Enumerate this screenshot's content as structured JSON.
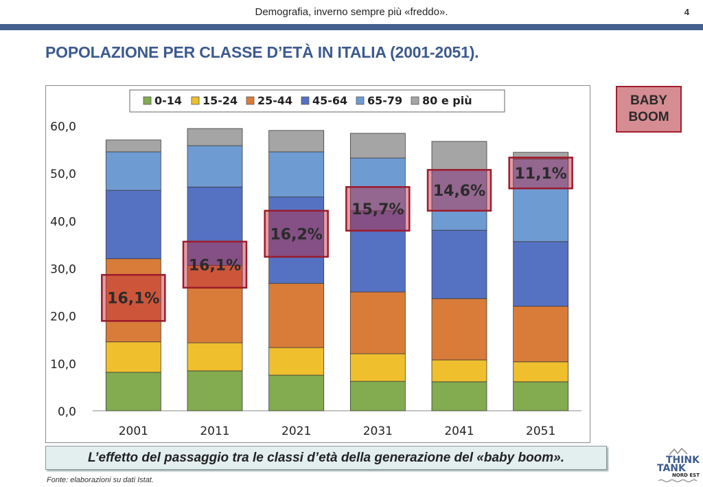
{
  "header": {
    "text": "Demografia, inverno sempre più «freddo».",
    "page_number": "4"
  },
  "title": "POPOLAZIONE PER CLASSE D’ETÀ IN ITALIA (2001-2051).",
  "baby_boom_label": {
    "line1": "BABY",
    "line2": "BOOM"
  },
  "caption": "L’effetto del passaggio tra le classi d’età della generazione del «baby boom».",
  "source": "Fonte: elaborazioni su dati Istat.",
  "logo": {
    "line1": "THINK",
    "line2": "TANK",
    "line3": "NORD EST"
  },
  "chart_data": {
    "type": "bar",
    "stacked": true,
    "title": "",
    "xlabel": "",
    "ylabel": "",
    "ylim": [
      0,
      60
    ],
    "yticks": [
      "0,0",
      "10,0",
      "20,0",
      "30,0",
      "40,0",
      "50,0",
      "60,0"
    ],
    "ytick_values": [
      0,
      10,
      20,
      30,
      40,
      50,
      60
    ],
    "legend_position": "top",
    "grid": false,
    "categories": [
      "2001",
      "2011",
      "2021",
      "2031",
      "2041",
      "2051"
    ],
    "series": [
      {
        "name": "0-14",
        "color": "#83ab4f",
        "values": [
          8.1,
          8.4,
          7.5,
          6.2,
          6.1,
          6.1
        ]
      },
      {
        "name": "15-24",
        "color": "#f0bf2d",
        "values": [
          6.4,
          5.9,
          5.8,
          5.8,
          4.6,
          4.2
        ]
      },
      {
        "name": "25-44",
        "color": "#d97c3a",
        "values": [
          17.5,
          16.3,
          13.5,
          13.0,
          12.9,
          11.7
        ]
      },
      {
        "name": "45-64",
        "color": "#5572c2",
        "values": [
          14.4,
          16.5,
          18.2,
          17.1,
          14.4,
          13.6
        ]
      },
      {
        "name": "65-79",
        "color": "#6f9bd3",
        "values": [
          8.1,
          8.7,
          9.5,
          11.1,
          12.7,
          17.4
        ]
      },
      {
        "name": "80 e più",
        "color": "#a5a5a5",
        "values": [
          2.5,
          3.6,
          4.5,
          5.2,
          6.0,
          1.4
        ]
      }
    ],
    "annotations": [
      {
        "category": "2001",
        "label": "16,1%",
        "y_range": [
          18.9,
          28.6
        ]
      },
      {
        "category": "2011",
        "label": "16,1%",
        "y_range": [
          25.9,
          35.6
        ]
      },
      {
        "category": "2021",
        "label": "16,2%",
        "y_range": [
          32.4,
          42.1
        ]
      },
      {
        "category": "2031",
        "label": "15,7%",
        "y_range": [
          37.9,
          47.1
        ]
      },
      {
        "category": "2041",
        "label": "14,6%",
        "y_range": [
          42.1,
          50.7
        ]
      },
      {
        "category": "2051",
        "label": "11,1%",
        "y_range": [
          46.8,
          53.3
        ]
      }
    ]
  }
}
